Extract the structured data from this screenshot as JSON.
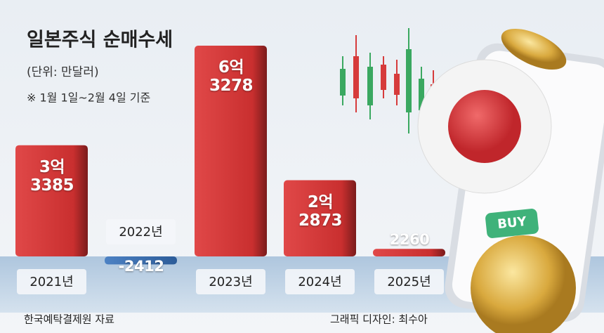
{
  "chart_data": {
    "type": "bar",
    "title": "일본주식 순매수세",
    "subtitle": "(단위: 만달러)",
    "note": "※ 1월 1일~2월 4일 기준",
    "categories": [
      "2021년",
      "2022년",
      "2023년",
      "2024년",
      "2025년"
    ],
    "values": [
      33385,
      -2412,
      63278,
      22873,
      2260
    ],
    "value_labels": [
      "3억\n3385",
      "-2412",
      "6억\n3278",
      "2억\n2873",
      "2260"
    ],
    "color": "#d63b3b",
    "negative_color": "#3f73b8",
    "annotations": [
      "BUY"
    ],
    "source": "한국예탁결제원 자료",
    "credit": "그래픽 디자인: 최수아"
  }
}
